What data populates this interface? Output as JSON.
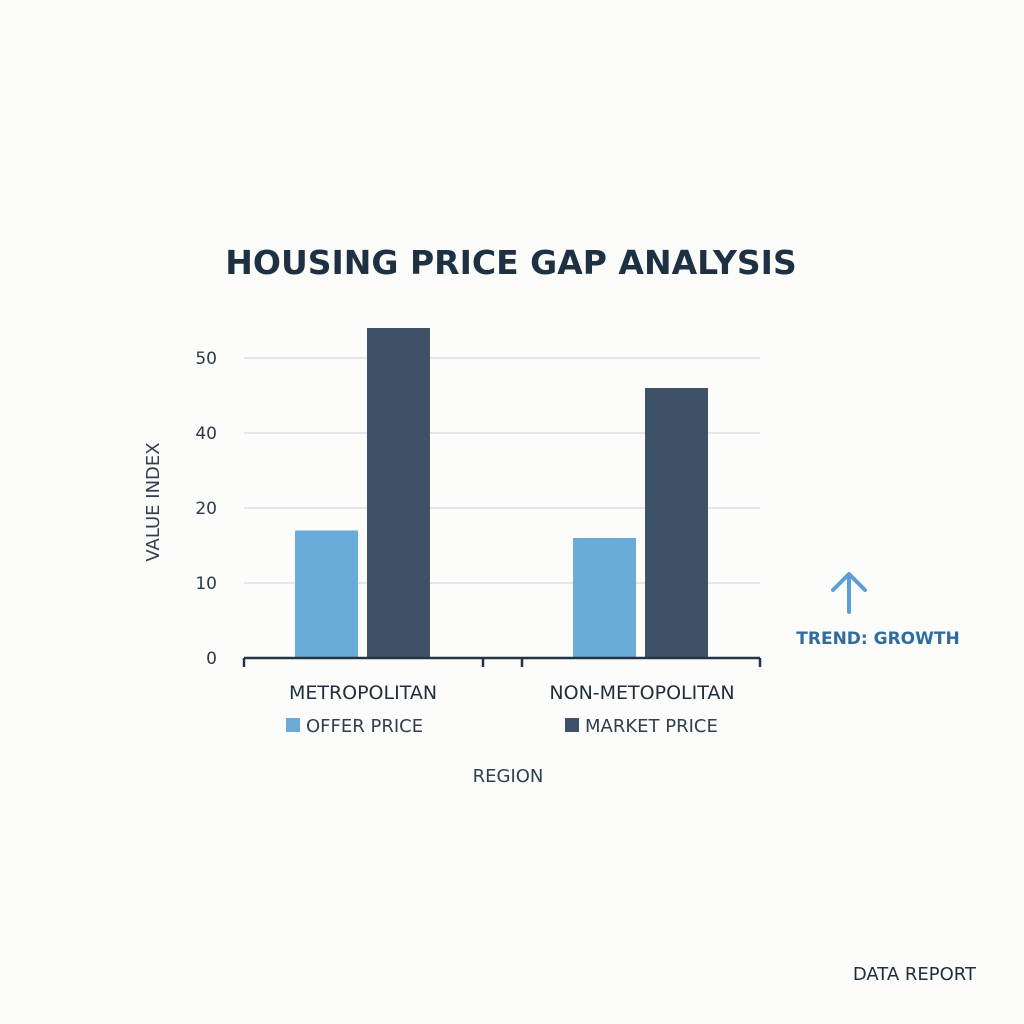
{
  "chart_data": {
    "type": "bar",
    "title": "HOUSING PRICE GAP ANALYSIS",
    "xlabel": "REGION",
    "ylabel": "VALUE INDEX",
    "categories": [
      "METROPOLITAN",
      "NON-METOPOLITAN"
    ],
    "y_ticks": [
      "0",
      "10",
      "20",
      "40",
      "50"
    ],
    "series": [
      {
        "name": "OFFER PRICE",
        "values": [
          17,
          16
        ],
        "color": "#69acd9"
      },
      {
        "name": "MARKET PRICE",
        "values": [
          54,
          46
        ],
        "color": "#3f5167"
      }
    ],
    "grid": true,
    "legend_position": "bottom",
    "annotation": {
      "text": "TREND: GROWTH",
      "icon": "up-arrow-icon",
      "color": "#2f6da1",
      "icon_color": "#5b9fd6"
    }
  },
  "footer": {
    "text": "DATA REPORT"
  }
}
